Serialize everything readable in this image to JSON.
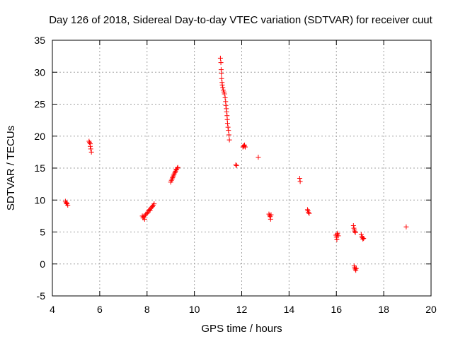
{
  "chart_data": {
    "type": "scatter",
    "title": "Day 126 of 2018, Sidereal Day-to-day VTEC variation (SDTVAR) for receiver cuut",
    "xlabel": "GPS time / hours",
    "ylabel": "SDTVAR / TECUs",
    "xlim": [
      4,
      20
    ],
    "ylim": [
      -5,
      35
    ],
    "xticks": [
      4,
      6,
      8,
      10,
      12,
      14,
      16,
      18,
      20
    ],
    "yticks": [
      -5,
      0,
      5,
      10,
      15,
      20,
      25,
      30,
      35
    ],
    "grid": true,
    "marker": "+",
    "series": [
      {
        "name": "SDTVAR",
        "color": "#ff0000",
        "points": [
          [
            4.55,
            9.8
          ],
          [
            4.58,
            9.6
          ],
          [
            4.6,
            9.5
          ],
          [
            4.62,
            9.4
          ],
          [
            4.65,
            9.2
          ],
          [
            5.55,
            19.2
          ],
          [
            5.57,
            19.0
          ],
          [
            5.6,
            18.8
          ],
          [
            5.6,
            18.4
          ],
          [
            5.62,
            18.0
          ],
          [
            5.65,
            17.5
          ],
          [
            7.8,
            7.5
          ],
          [
            7.83,
            7.2
          ],
          [
            7.86,
            7.4
          ],
          [
            7.9,
            7.0
          ],
          [
            7.92,
            7.6
          ],
          [
            7.95,
            7.8
          ],
          [
            8.0,
            7.9
          ],
          [
            8.03,
            8.1
          ],
          [
            8.06,
            8.3
          ],
          [
            8.1,
            8.5
          ],
          [
            8.13,
            8.4
          ],
          [
            8.16,
            8.7
          ],
          [
            8.2,
            8.9
          ],
          [
            8.23,
            9.0
          ],
          [
            8.26,
            9.2
          ],
          [
            8.3,
            9.4
          ],
          [
            9.0,
            12.8
          ],
          [
            9.03,
            13.1
          ],
          [
            9.06,
            13.3
          ],
          [
            9.08,
            13.5
          ],
          [
            9.1,
            13.7
          ],
          [
            9.12,
            13.9
          ],
          [
            9.15,
            14.1
          ],
          [
            9.18,
            14.3
          ],
          [
            9.2,
            14.5
          ],
          [
            9.22,
            14.7
          ],
          [
            9.25,
            14.8
          ],
          [
            9.28,
            15.0
          ],
          [
            9.3,
            15.1
          ],
          [
            11.1,
            32.2
          ],
          [
            11.12,
            31.5
          ],
          [
            11.13,
            30.4
          ],
          [
            11.14,
            29.8
          ],
          [
            11.15,
            29.0
          ],
          [
            11.17,
            28.4
          ],
          [
            11.18,
            28.0
          ],
          [
            11.2,
            27.6
          ],
          [
            11.22,
            27.2
          ],
          [
            11.25,
            26.9
          ],
          [
            11.27,
            26.6
          ],
          [
            11.3,
            26.0
          ],
          [
            11.32,
            25.4
          ],
          [
            11.33,
            24.8
          ],
          [
            11.35,
            24.3
          ],
          [
            11.36,
            23.8
          ],
          [
            11.38,
            23.2
          ],
          [
            11.39,
            22.6
          ],
          [
            11.4,
            22.0
          ],
          [
            11.42,
            21.4
          ],
          [
            11.44,
            20.9
          ],
          [
            11.46,
            20.2
          ],
          [
            11.48,
            19.4
          ],
          [
            11.75,
            15.5
          ],
          [
            11.78,
            15.4
          ],
          [
            12.05,
            18.3
          ],
          [
            12.08,
            18.5
          ],
          [
            12.1,
            18.4
          ],
          [
            12.12,
            18.6
          ],
          [
            12.15,
            18.3
          ],
          [
            12.7,
            16.7
          ],
          [
            13.15,
            7.8
          ],
          [
            13.18,
            7.6
          ],
          [
            13.2,
            7.4
          ],
          [
            13.22,
            7.0
          ],
          [
            13.24,
            7.7
          ],
          [
            14.45,
            13.4
          ],
          [
            14.47,
            12.9
          ],
          [
            14.78,
            8.5
          ],
          [
            14.8,
            8.3
          ],
          [
            14.82,
            8.1
          ],
          [
            14.85,
            7.9
          ],
          [
            15.98,
            4.5
          ],
          [
            16.0,
            4.2
          ],
          [
            16.02,
            3.8
          ],
          [
            16.03,
            4.6
          ],
          [
            16.05,
            4.8
          ],
          [
            16.08,
            4.4
          ],
          [
            16.72,
            6.0
          ],
          [
            16.74,
            5.6
          ],
          [
            16.76,
            5.3
          ],
          [
            16.78,
            5.1
          ],
          [
            16.8,
            4.9
          ],
          [
            16.75,
            -0.3
          ],
          [
            16.77,
            -0.6
          ],
          [
            16.8,
            -0.8
          ],
          [
            16.82,
            -1.0
          ],
          [
            16.84,
            -0.7
          ],
          [
            17.05,
            4.6
          ],
          [
            17.08,
            4.3
          ],
          [
            17.1,
            4.1
          ],
          [
            17.12,
            3.9
          ],
          [
            17.15,
            4.0
          ],
          [
            18.95,
            5.8
          ]
        ]
      }
    ]
  }
}
